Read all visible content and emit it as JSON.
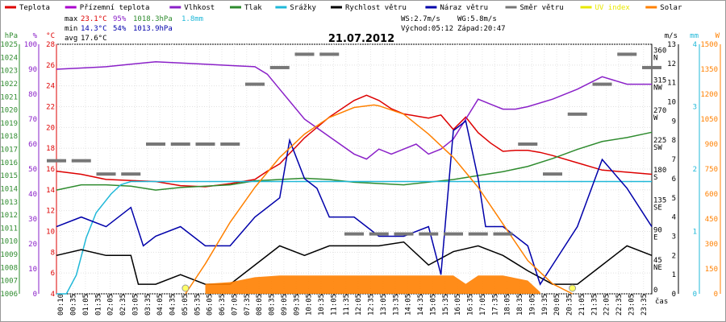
{
  "chart_data": {
    "type": "line",
    "title": "21.07.2012",
    "xlabel": "čas",
    "x_ticks": [
      "00:10",
      "00:35",
      "01:05",
      "01:35",
      "02:05",
      "02:35",
      "03:05",
      "03:35",
      "04:05",
      "04:35",
      "05:05",
      "05:35",
      "06:05",
      "06:35",
      "07:05",
      "07:35",
      "08:05",
      "08:35",
      "09:05",
      "09:35",
      "10:05",
      "10:35",
      "11:05",
      "11:35",
      "12:05",
      "12:35",
      "13:05",
      "13:35",
      "14:05",
      "14:35",
      "15:05",
      "15:35",
      "16:05",
      "16:35",
      "17:05",
      "17:35",
      "18:05",
      "18:35",
      "19:05",
      "19:35",
      "20:05",
      "20:35",
      "21:05",
      "21:35",
      "22:05",
      "22:35",
      "23:05",
      "23:35"
    ],
    "legend": [
      {
        "name": "Teplota",
        "color": "#dd0000"
      },
      {
        "name": "Přízemní teplota",
        "color": "#aa00cc"
      },
      {
        "name": "Vlhkost",
        "color": "#8a20c8"
      },
      {
        "name": "Tlak",
        "color": "#2e8b2e"
      },
      {
        "name": "Srážky",
        "color": "#20b8d8"
      },
      {
        "name": "Rychlost větru",
        "color": "#000000"
      },
      {
        "name": "Náraz větru",
        "color": "#0000aa"
      },
      {
        "name": "Směr větru",
        "color": "#777777"
      },
      {
        "name": "UV index",
        "color": "#e8e800"
      },
      {
        "name": "Solar",
        "color": "#ff8000"
      }
    ],
    "stats": {
      "max": {
        "label": "max",
        "temp": "23.1°C",
        "hum": "95%",
        "press": "1018.3hPa",
        "rain": "1.8mm"
      },
      "min": {
        "label": "min",
        "temp": "14.3°C",
        "hum": "54%",
        "press": "1013.9hPa"
      },
      "avg": {
        "label": "avg",
        "temp": "17.6°C"
      }
    },
    "info": {
      "ws": "WS:2.7m/s",
      "wg": "WG:5.8m/s",
      "sunrise": "Východ:05:12",
      "sunset": "Západ:20:47"
    },
    "axes": {
      "hpa": {
        "unit": "hPa",
        "range": [
          1006,
          1025
        ],
        "ticks": [
          1006,
          1007,
          1008,
          1009,
          1010,
          1011,
          1012,
          1013,
          1014,
          1015,
          1016,
          1017,
          1018,
          1019,
          1020,
          1021,
          1022,
          1023,
          1024,
          1025
        ],
        "color": "#2e8b2e"
      },
      "pct": {
        "unit": "%",
        "range": [
          0,
          100
        ],
        "ticks": [
          0,
          10,
          20,
          30,
          40,
          50,
          60,
          70,
          80,
          90,
          100
        ],
        "color": "#8a20c8"
      },
      "celsius": {
        "unit": "°C",
        "range": [
          4,
          28
        ],
        "ticks": [
          4,
          6,
          8,
          10,
          12,
          14,
          16,
          18,
          20,
          22,
          24,
          26,
          28
        ],
        "color": "#dd0000"
      },
      "dir": {
        "unit": "",
        "ticks": [
          {
            "v": 0,
            "l": "0"
          },
          {
            "v": 45,
            "l": "45"
          },
          {
            "v": 90,
            "l": "90"
          },
          {
            "v": 135,
            "l": "135"
          },
          {
            "v": 180,
            "l": "180"
          },
          {
            "v": 225,
            "l": "225"
          },
          {
            "v": 270,
            "l": "270"
          },
          {
            "v": 315,
            "l": "315"
          },
          {
            "v": 360,
            "l": "360"
          }
        ],
        "dir_labels": [
          "",
          "NE",
          "E",
          "SE",
          "S",
          "SW",
          "W",
          "NW",
          "N"
        ],
        "color": "#777777"
      },
      "ms": {
        "unit": "m/s",
        "range": [
          0,
          13
        ],
        "ticks": [
          0,
          1,
          2,
          3,
          4,
          5,
          6,
          7,
          8,
          9,
          10,
          11,
          12,
          13
        ],
        "color": "#000000"
      },
      "mm": {
        "unit": "mm",
        "range": [
          0,
          4
        ],
        "ticks": [
          0,
          1,
          2,
          3,
          4
        ],
        "color": "#20b8d8"
      },
      "w": {
        "unit": "W",
        "range": [
          0,
          1500
        ],
        "ticks": [
          0,
          150,
          300,
          450,
          600,
          750,
          900,
          1050,
          1200,
          1350,
          1500
        ],
        "color": "#ff8000"
      }
    },
    "series": [
      {
        "name": "Teplota",
        "axis": "celsius",
        "color": "#dd0000",
        "x": [
          0,
          1,
          2,
          3,
          4,
          5,
          6,
          7,
          8,
          8.5,
          9,
          10,
          11,
          12,
          12.5,
          13,
          13.5,
          14,
          14.5,
          15,
          15.5,
          16,
          16.5,
          17,
          17.5,
          18,
          18.5,
          19,
          19.5,
          20,
          21,
          22,
          23,
          24
        ],
        "y": [
          15.8,
          15.5,
          15.0,
          14.9,
          14.8,
          14.4,
          14.3,
          14.6,
          15.0,
          15.8,
          16.5,
          19.0,
          21.0,
          22.6,
          23.1,
          22.6,
          21.8,
          21.3,
          21.1,
          20.9,
          21.2,
          19.8,
          21.0,
          19.5,
          18.5,
          17.7,
          17.8,
          17.8,
          17.6,
          17.3,
          16.6,
          15.9,
          15.7,
          15.5
        ]
      },
      {
        "name": "Vlhkost",
        "axis": "pct",
        "color": "#8a20c8",
        "x": [
          0,
          1,
          2,
          3,
          4,
          5,
          6,
          7,
          8,
          8.5,
          9,
          10,
          11,
          12,
          12.5,
          13,
          13.5,
          14,
          14.5,
          15,
          15.5,
          16,
          16.5,
          17,
          17.5,
          18,
          18.5,
          19,
          20,
          21,
          22,
          23,
          24
        ],
        "y": [
          90,
          90.5,
          91,
          92,
          93,
          92.5,
          92,
          91.5,
          91,
          88,
          82,
          70,
          63,
          56,
          54,
          58,
          56,
          58,
          60,
          56,
          58,
          62,
          70,
          78,
          76,
          74,
          74,
          75,
          78,
          82,
          87,
          84,
          84
        ]
      },
      {
        "name": "Tlak",
        "axis": "hpa",
        "color": "#2e8b2e",
        "x": [
          0,
          1,
          2,
          3,
          4,
          5,
          6,
          7,
          8,
          9,
          10,
          11,
          12,
          13,
          14,
          15,
          16,
          17,
          18,
          19,
          20,
          21,
          22,
          23,
          24
        ],
        "y": [
          1013.9,
          1014.3,
          1014.3,
          1014.2,
          1013.9,
          1014.1,
          1014.2,
          1014.3,
          1014.6,
          1014.7,
          1014.8,
          1014.7,
          1014.5,
          1014.4,
          1014.3,
          1014.5,
          1014.7,
          1015.0,
          1015.3,
          1015.7,
          1016.3,
          1017.0,
          1017.6,
          1017.9,
          1018.3
        ]
      },
      {
        "name": "Srážky",
        "axis": "mm",
        "color": "#20b8d8",
        "x": [
          0,
          0.4,
          0.8,
          1.2,
          1.6,
          2.2,
          2.6,
          3,
          24
        ],
        "y": [
          0,
          0,
          0.3,
          0.9,
          1.3,
          1.6,
          1.75,
          1.8,
          1.8
        ]
      },
      {
        "name": "Rychlost větru",
        "axis": "ms",
        "color": "#000000",
        "x": [
          0,
          1,
          2,
          3,
          3.3,
          4,
          5,
          6,
          7,
          8,
          9,
          10,
          11,
          12,
          13,
          14,
          15,
          16,
          17,
          18,
          19,
          20,
          21,
          22,
          23,
          24
        ],
        "y": [
          2,
          2.3,
          2,
          2,
          0.5,
          0.5,
          1,
          0.5,
          0.5,
          1.5,
          2.5,
          2,
          2.5,
          2.5,
          2.5,
          2.7,
          1.5,
          2.2,
          2.5,
          2,
          1.2,
          0.5,
          0.5,
          1.5,
          2.5,
          2
        ]
      },
      {
        "name": "Náraz větru",
        "axis": "ms",
        "color": "#0000aa",
        "x": [
          0,
          1,
          2,
          3,
          3.5,
          4,
          5,
          6,
          7,
          8,
          9,
          9.4,
          10,
          10.5,
          11,
          12,
          13,
          14,
          15,
          15.5,
          16,
          16.5,
          17,
          17.3,
          18,
          19,
          19.5,
          20,
          21,
          22,
          23,
          24
        ],
        "y": [
          3.5,
          4,
          3.5,
          4.5,
          2.5,
          3,
          3.5,
          2.5,
          2.5,
          4,
          5,
          8,
          6,
          5.5,
          4,
          4,
          3,
          3,
          3.5,
          1,
          8.5,
          9,
          6,
          3.5,
          3.5,
          2.5,
          0.5,
          1.5,
          3.5,
          7,
          5.5,
          3.5
        ]
      },
      {
        "name": "Solar",
        "axis": "w",
        "color": "#ff8000",
        "x": [
          5.2,
          6,
          7,
          8,
          9,
          10,
          11,
          12,
          12.8,
          13,
          14,
          15,
          16,
          17,
          18,
          19,
          20,
          20.8
        ],
        "y": [
          0,
          180,
          430,
          640,
          820,
          960,
          1060,
          1120,
          1135,
          1130,
          1080,
          960,
          820,
          640,
          420,
          200,
          60,
          0
        ]
      },
      {
        "name": "Solar area",
        "axis": "w",
        "color": "#ff8000",
        "x": [
          6,
          7,
          8,
          9,
          10,
          11,
          12,
          13,
          14,
          15,
          16,
          16.5,
          17,
          18,
          19,
          19.5
        ],
        "y": [
          60,
          70,
          100,
          110,
          110,
          110,
          110,
          110,
          110,
          110,
          110,
          60,
          110,
          110,
          80,
          10
        ]
      },
      {
        "name": "Směr větru",
        "axis": "dir",
        "color": "#777777",
        "x": [
          0,
          1,
          2,
          3,
          4,
          5,
          6,
          7,
          8,
          9,
          10,
          11,
          12,
          13,
          14,
          15,
          16,
          17,
          18,
          19,
          20,
          21,
          22,
          23,
          24
        ],
        "y": [
          200,
          200,
          180,
          180,
          225,
          225,
          225,
          225,
          315,
          340,
          360,
          360,
          90,
          90,
          90,
          90,
          90,
          90,
          90,
          225,
          180,
          270,
          315,
          360,
          340
        ]
      }
    ]
  }
}
